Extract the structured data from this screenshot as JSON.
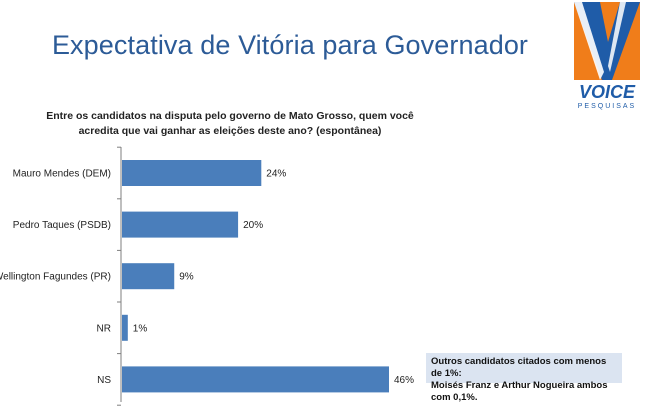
{
  "header": {
    "title": "Expectativa de Vitória para Governador",
    "logo_text": "VOICE",
    "logo_subtext": "PESQUISAS"
  },
  "colors": {
    "title": "#2c5b97",
    "bar": "#4a7ebb",
    "logo_orange": "#f07d1a",
    "logo_blue": "#1f5ca8"
  },
  "question": {
    "line1": "Entre os candidatos na disputa pelo governo de Mato Grosso, quem você",
    "line2": "acredita que vai ganhar as eleições deste ano? (espontânea)"
  },
  "chart_data": {
    "type": "bar",
    "orientation": "horizontal",
    "categories": [
      "Mauro Mendes (DEM)",
      "Pedro Taques (PSDB)",
      "Wellington Fagundes (PR)",
      "NR",
      "NS"
    ],
    "values": [
      24,
      20,
      9,
      1,
      46
    ],
    "value_labels": [
      "24%",
      "20%",
      "9%",
      "1%",
      "46%"
    ],
    "unit": "%",
    "xlim": [
      0,
      46
    ],
    "grid": false,
    "title": "",
    "xlabel": "",
    "ylabel": ""
  },
  "note": {
    "line1": "Outros candidatos citados com menos de 1%:",
    "line2": "Moisés Franz e Arthur Nogueira ambos com 0,1%."
  }
}
